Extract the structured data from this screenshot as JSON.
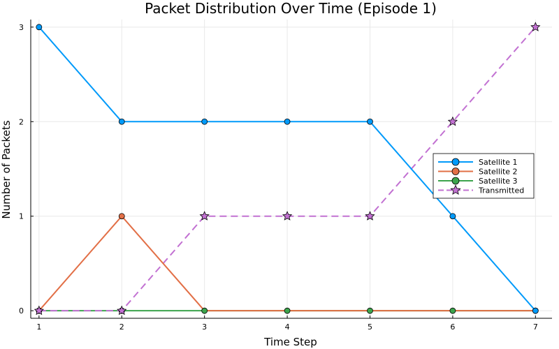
{
  "chart_data": {
    "type": "line",
    "title": "Packet Distribution Over Time (Episode 1)",
    "xlabel": "Time Step",
    "ylabel": "Number of Packets",
    "x": [
      1,
      2,
      3,
      4,
      5,
      6,
      7
    ],
    "xlim": [
      0.9,
      7.2
    ],
    "ylim": [
      -0.08,
      3.08
    ],
    "xticks": [
      1,
      2,
      3,
      4,
      5,
      6,
      7
    ],
    "yticks": [
      0,
      1,
      2,
      3
    ],
    "grid": true,
    "legend_position": "right-middle",
    "series": [
      {
        "name": "Satellite 1",
        "values": [
          3,
          2,
          2,
          2,
          2,
          1,
          0
        ],
        "color": "#009AFA",
        "marker": "circle",
        "dash": "solid"
      },
      {
        "name": "Satellite 2",
        "values": [
          0,
          1,
          0,
          0,
          0,
          0,
          0
        ],
        "color": "#E26F46",
        "marker": "none",
        "dash": "solid",
        "marker_points": [
          1
        ]
      },
      {
        "name": "Satellite 3",
        "values": [
          0,
          0,
          0,
          0,
          0,
          0,
          0
        ],
        "color": "#3DA44D",
        "marker": "circle",
        "dash": "solid"
      },
      {
        "name": "Transmitted",
        "values": [
          0,
          0,
          1,
          1,
          1,
          2,
          3
        ],
        "color": "#C271D2",
        "marker": "star",
        "dash": "dashed"
      }
    ]
  }
}
